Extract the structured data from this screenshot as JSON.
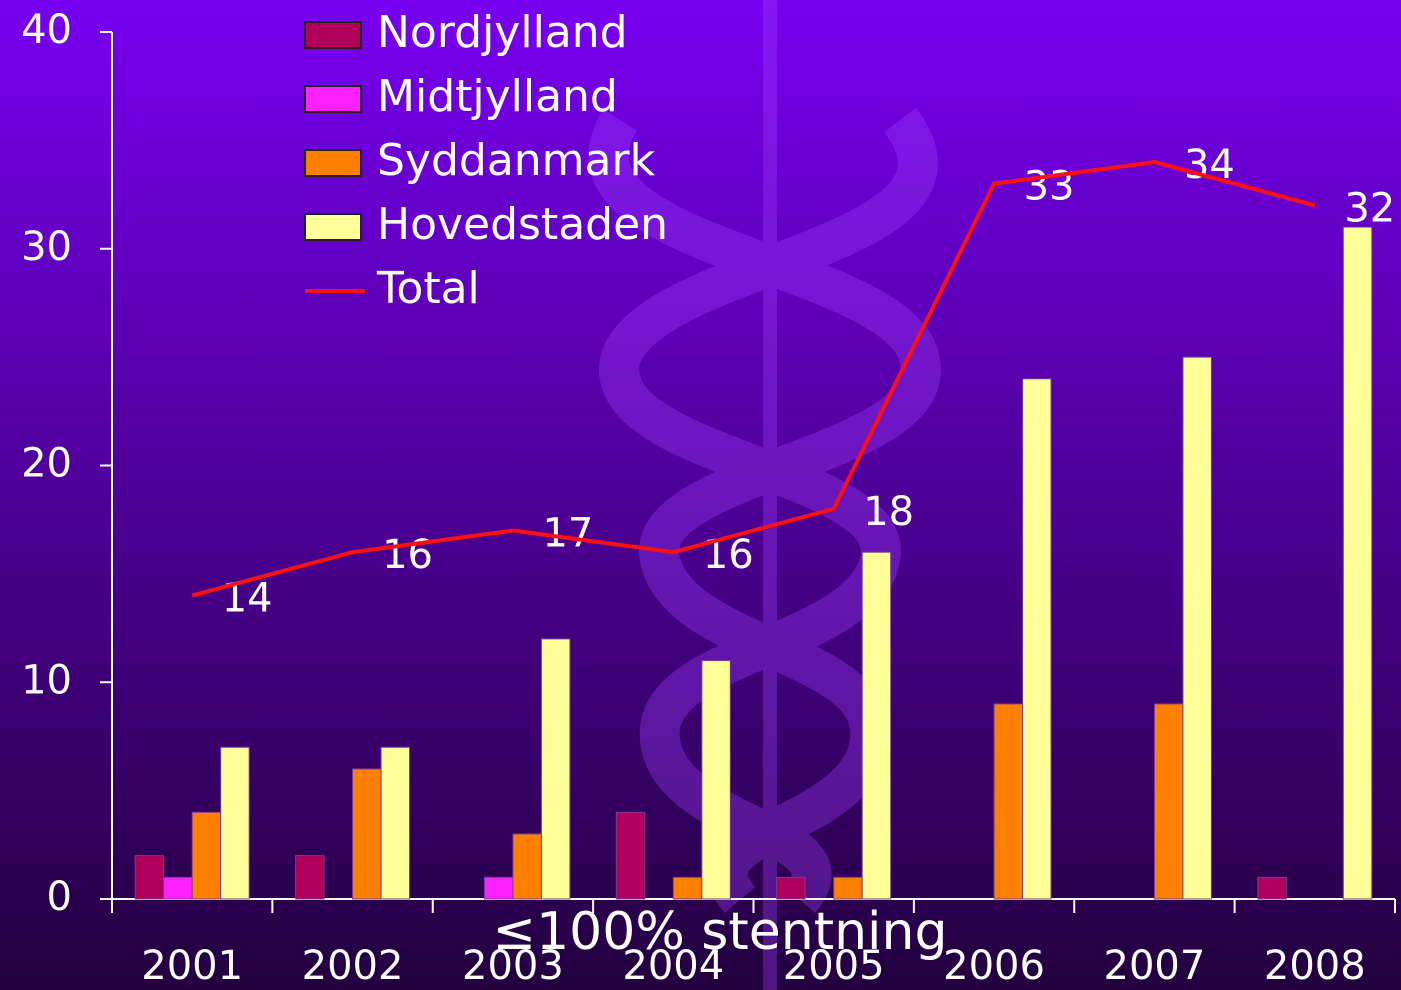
{
  "chart_data": {
    "type": "bar",
    "x_label": "≤100% stentning",
    "categories": [
      "2001",
      "2002",
      "2003",
      "2004",
      "2005",
      "2006",
      "2007",
      "2008"
    ],
    "series": [
      {
        "name": "Nordjylland",
        "color": "#b0005a",
        "values": [
          2,
          2,
          null,
          4,
          1,
          null,
          null,
          1
        ]
      },
      {
        "name": "Midtjylland",
        "color": "#ff22ff",
        "values": [
          1,
          null,
          1,
          null,
          null,
          null,
          null,
          null
        ]
      },
      {
        "name": "Syddanmark",
        "color": "#ff8000",
        "values": [
          4,
          6,
          3,
          1,
          1,
          9,
          9,
          null
        ]
      },
      {
        "name": "Hovedstaden",
        "color": "#ffff99",
        "values": [
          7,
          7,
          12,
          11,
          16,
          24,
          25,
          31
        ]
      },
      {
        "name": "Total",
        "color": "#ff1010",
        "type": "line",
        "values": [
          14,
          16,
          17,
          16,
          18,
          33,
          34,
          32
        ]
      }
    ],
    "ylim": [
      0,
      40
    ],
    "yticks": [
      0,
      10,
      20,
      30,
      40
    ]
  }
}
